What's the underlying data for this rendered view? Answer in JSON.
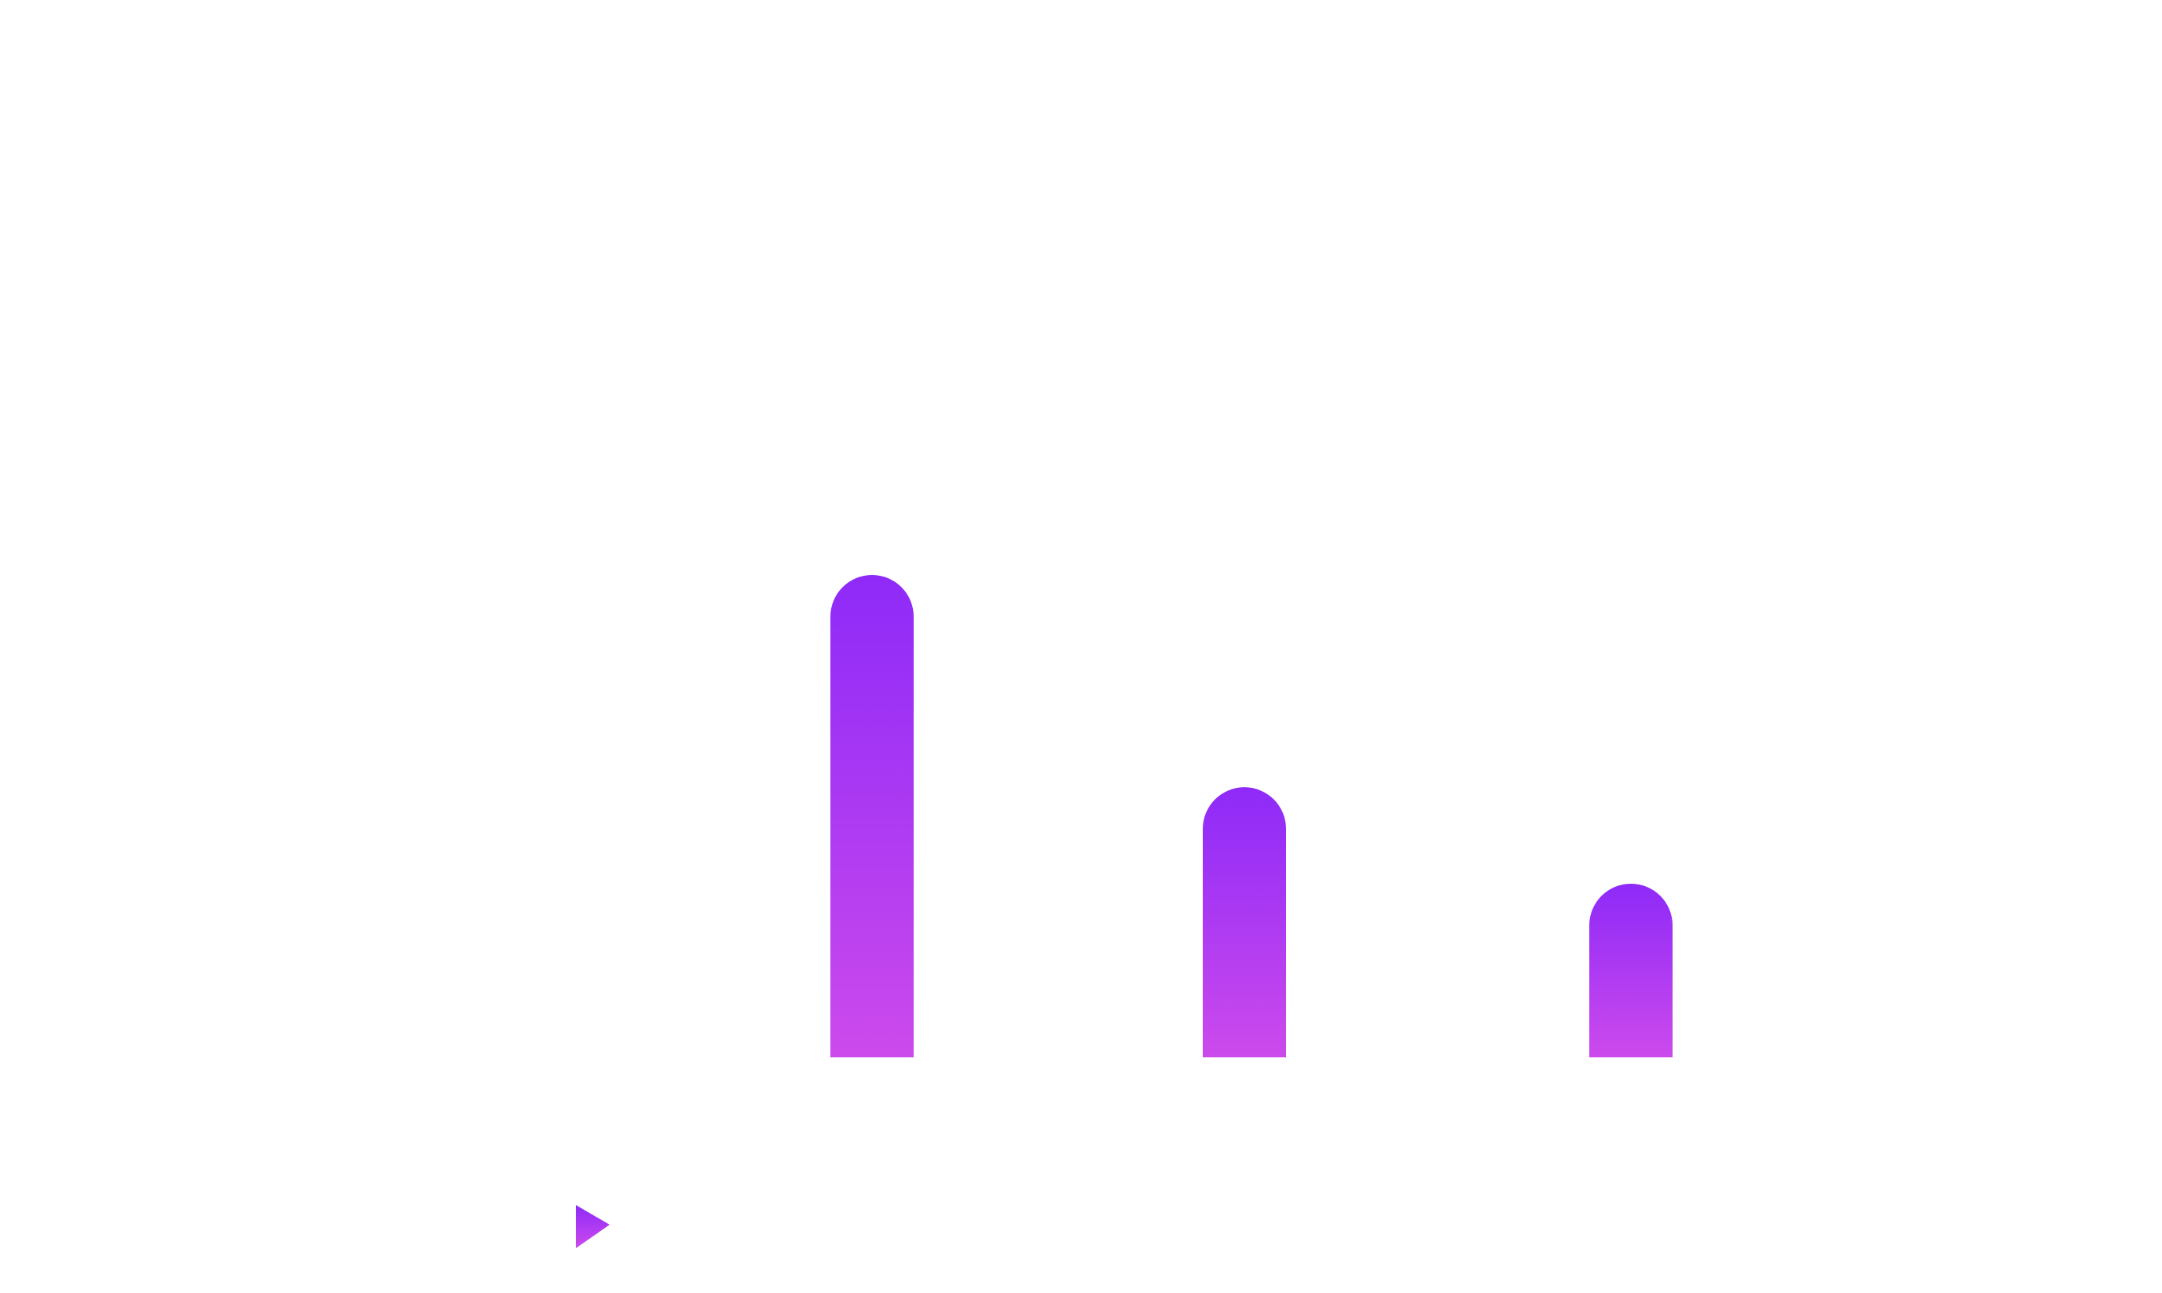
{
  "chart_data": {
    "type": "bar",
    "title": "",
    "xlabel": "",
    "ylabel": "",
    "categories": [
      "",
      "",
      ""
    ],
    "values": [
      100,
      56,
      36
    ],
    "ylim": [
      0,
      100
    ],
    "grid": false,
    "legend": "bottom-left",
    "series": [
      {
        "values": [
          100,
          56,
          36
        ]
      }
    ]
  },
  "colors": {
    "bar_top": "#8e2af8",
    "bar_bottom": "#cc4aec",
    "background": "#ffffff"
  },
  "legend": {
    "marker_icon": "play-triangle-icon",
    "label": ""
  }
}
